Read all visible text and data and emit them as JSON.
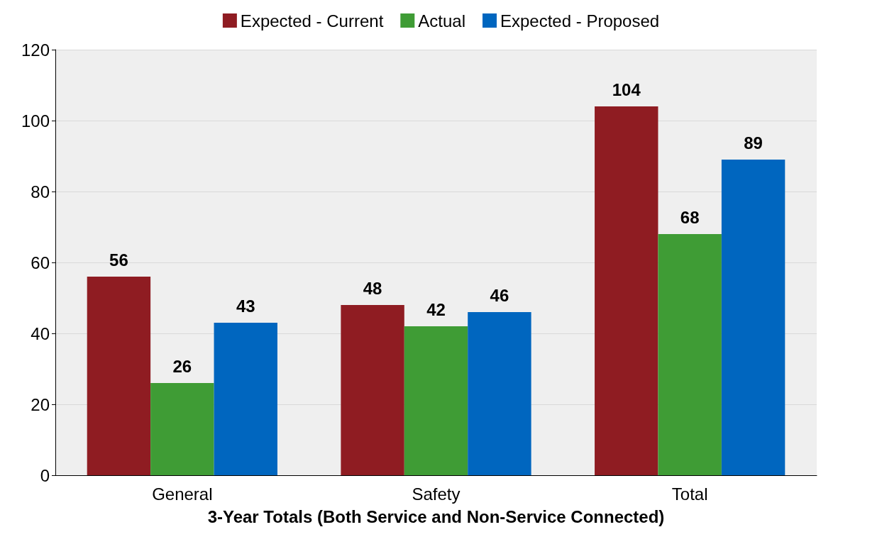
{
  "chart_data": {
    "type": "bar",
    "xlabel": "3-Year Totals (Both Service and Non-Service Connected)",
    "categories": [
      "General",
      "Safety",
      "Total"
    ],
    "series": [
      {
        "name": "Expected - Current",
        "color": "#8f1c22",
        "values": [
          56,
          48,
          104
        ]
      },
      {
        "name": "Actual",
        "color": "#3f9c35",
        "values": [
          26,
          42,
          68
        ]
      },
      {
        "name": "Expected - Proposed",
        "color": "#0066bf",
        "values": [
          43,
          46,
          89
        ]
      }
    ],
    "ylim": [
      0,
      120
    ],
    "yticks": [
      0,
      20,
      40,
      60,
      80,
      100,
      120
    ],
    "grid": "y",
    "legend": "top",
    "data_labels": true
  }
}
